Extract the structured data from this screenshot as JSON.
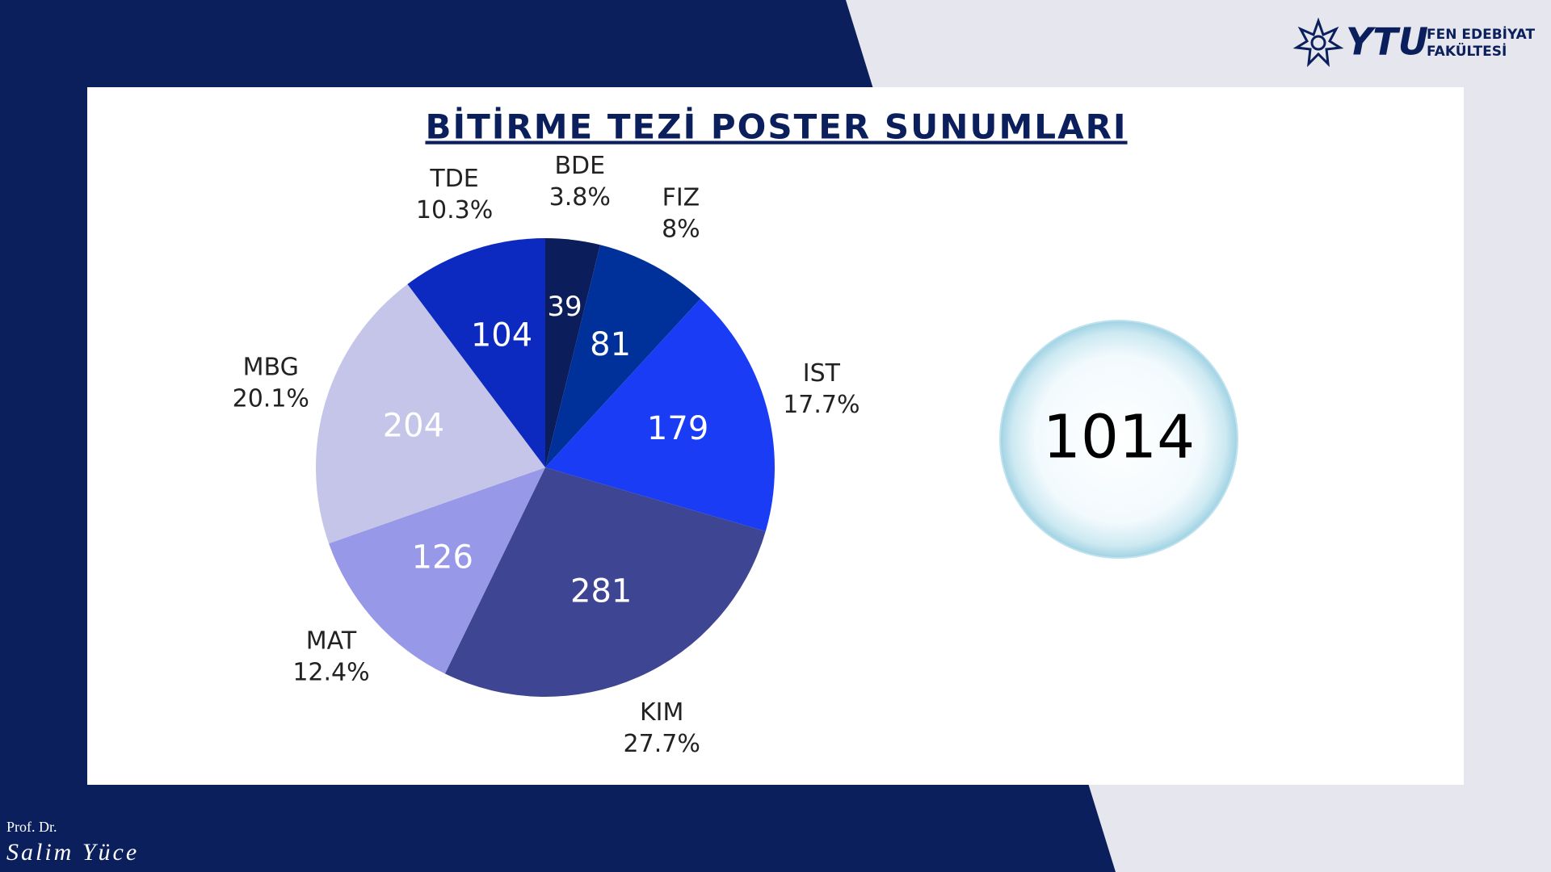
{
  "header": {
    "logo": "YTU",
    "faculty_line1": "FEN EDEBİYAT",
    "faculty_line2": "FAKÜLTESİ"
  },
  "chart_data": {
    "type": "pie",
    "title": "BİTİRME TEZİ POSTER SUNUMLARI",
    "categories": [
      "BDE",
      "FIZ",
      "IST",
      "KIM",
      "MAT",
      "MBG",
      "TDE"
    ],
    "values": [
      39,
      81,
      179,
      281,
      126,
      204,
      104
    ],
    "percent_labels": [
      "3.8%",
      "8%",
      "17.7%",
      "27.7%",
      "12.4%",
      "20.1%",
      "10.3%"
    ],
    "colors": [
      "#0b1d5a",
      "#00309a",
      "#1a3cf5",
      "#3e4592",
      "#9898e8",
      "#c5c5ea",
      "#0c2ac0"
    ],
    "total": 1014
  },
  "footer": {
    "title": "Prof. Dr.",
    "name": "Salim Yüce"
  }
}
